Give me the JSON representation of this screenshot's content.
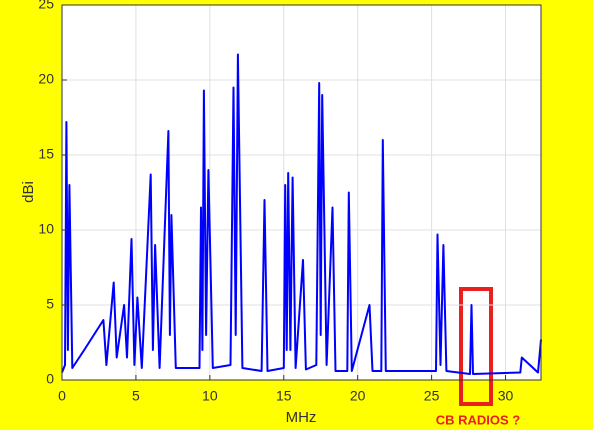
{
  "chart_data": {
    "type": "line",
    "x_label": "MHz",
    "y_label": "dBi",
    "annotation": "CB RADIOS ?",
    "x": [
      0,
      0.2,
      0.3,
      0.4,
      0.5,
      0.7,
      1.5,
      2.8,
      3.0,
      3.5,
      3.7,
      4.2,
      4.4,
      4.7,
      4.9,
      5.1,
      5.4,
      6.0,
      6.15,
      6.3,
      6.6,
      7.2,
      7.3,
      7.4,
      7.7,
      9.3,
      9.4,
      9.5,
      9.6,
      9.75,
      9.9,
      10.2,
      11.4,
      11.6,
      11.75,
      11.9,
      12.2,
      13.5,
      13.7,
      13.9,
      15.0,
      15.1,
      15.2,
      15.3,
      15.45,
      15.6,
      15.8,
      16.3,
      16.5,
      17.2,
      17.4,
      17.5,
      17.6,
      17.9,
      18.3,
      18.5,
      19.3,
      19.4,
      19.6,
      20.8,
      21.0,
      21.6,
      21.7,
      21.9,
      25.3,
      25.4,
      25.6,
      25.8,
      26.0,
      27.6,
      27.7,
      27.8,
      31.0,
      31.1,
      32.2,
      32.4
    ],
    "series": [
      {
        "color": "#0000ff",
        "values": [
          0.5,
          1,
          17.2,
          2,
          13,
          0.8,
          2,
          4,
          1,
          6.5,
          1.5,
          5,
          1.5,
          9.4,
          1,
          5.5,
          0.8,
          13.7,
          2,
          9,
          0.8,
          16.6,
          3,
          11,
          0.8,
          0.8,
          11.5,
          2,
          19.3,
          3,
          14,
          0.8,
          1,
          19.5,
          3,
          21.7,
          0.8,
          0.6,
          12,
          0.6,
          0.8,
          13,
          2,
          13.8,
          2,
          13.5,
          0.8,
          8,
          0.7,
          1,
          19.8,
          3,
          19,
          1,
          11.5,
          0.6,
          0.6,
          12.5,
          0.6,
          5,
          0.6,
          0.6,
          16,
          0.6,
          0.6,
          9.7,
          1,
          9,
          0.6,
          0.4,
          5,
          0.4,
          0.5,
          1.5,
          0.5,
          2.7
        ]
      }
    ],
    "xlim": [
      0,
      32.4
    ],
    "xticks": [
      0,
      5,
      10,
      15,
      20,
      25,
      30
    ],
    "ylim": [
      0,
      25
    ],
    "yticks": [
      0,
      5,
      10,
      15,
      20,
      25
    ],
    "grid": true
  }
}
